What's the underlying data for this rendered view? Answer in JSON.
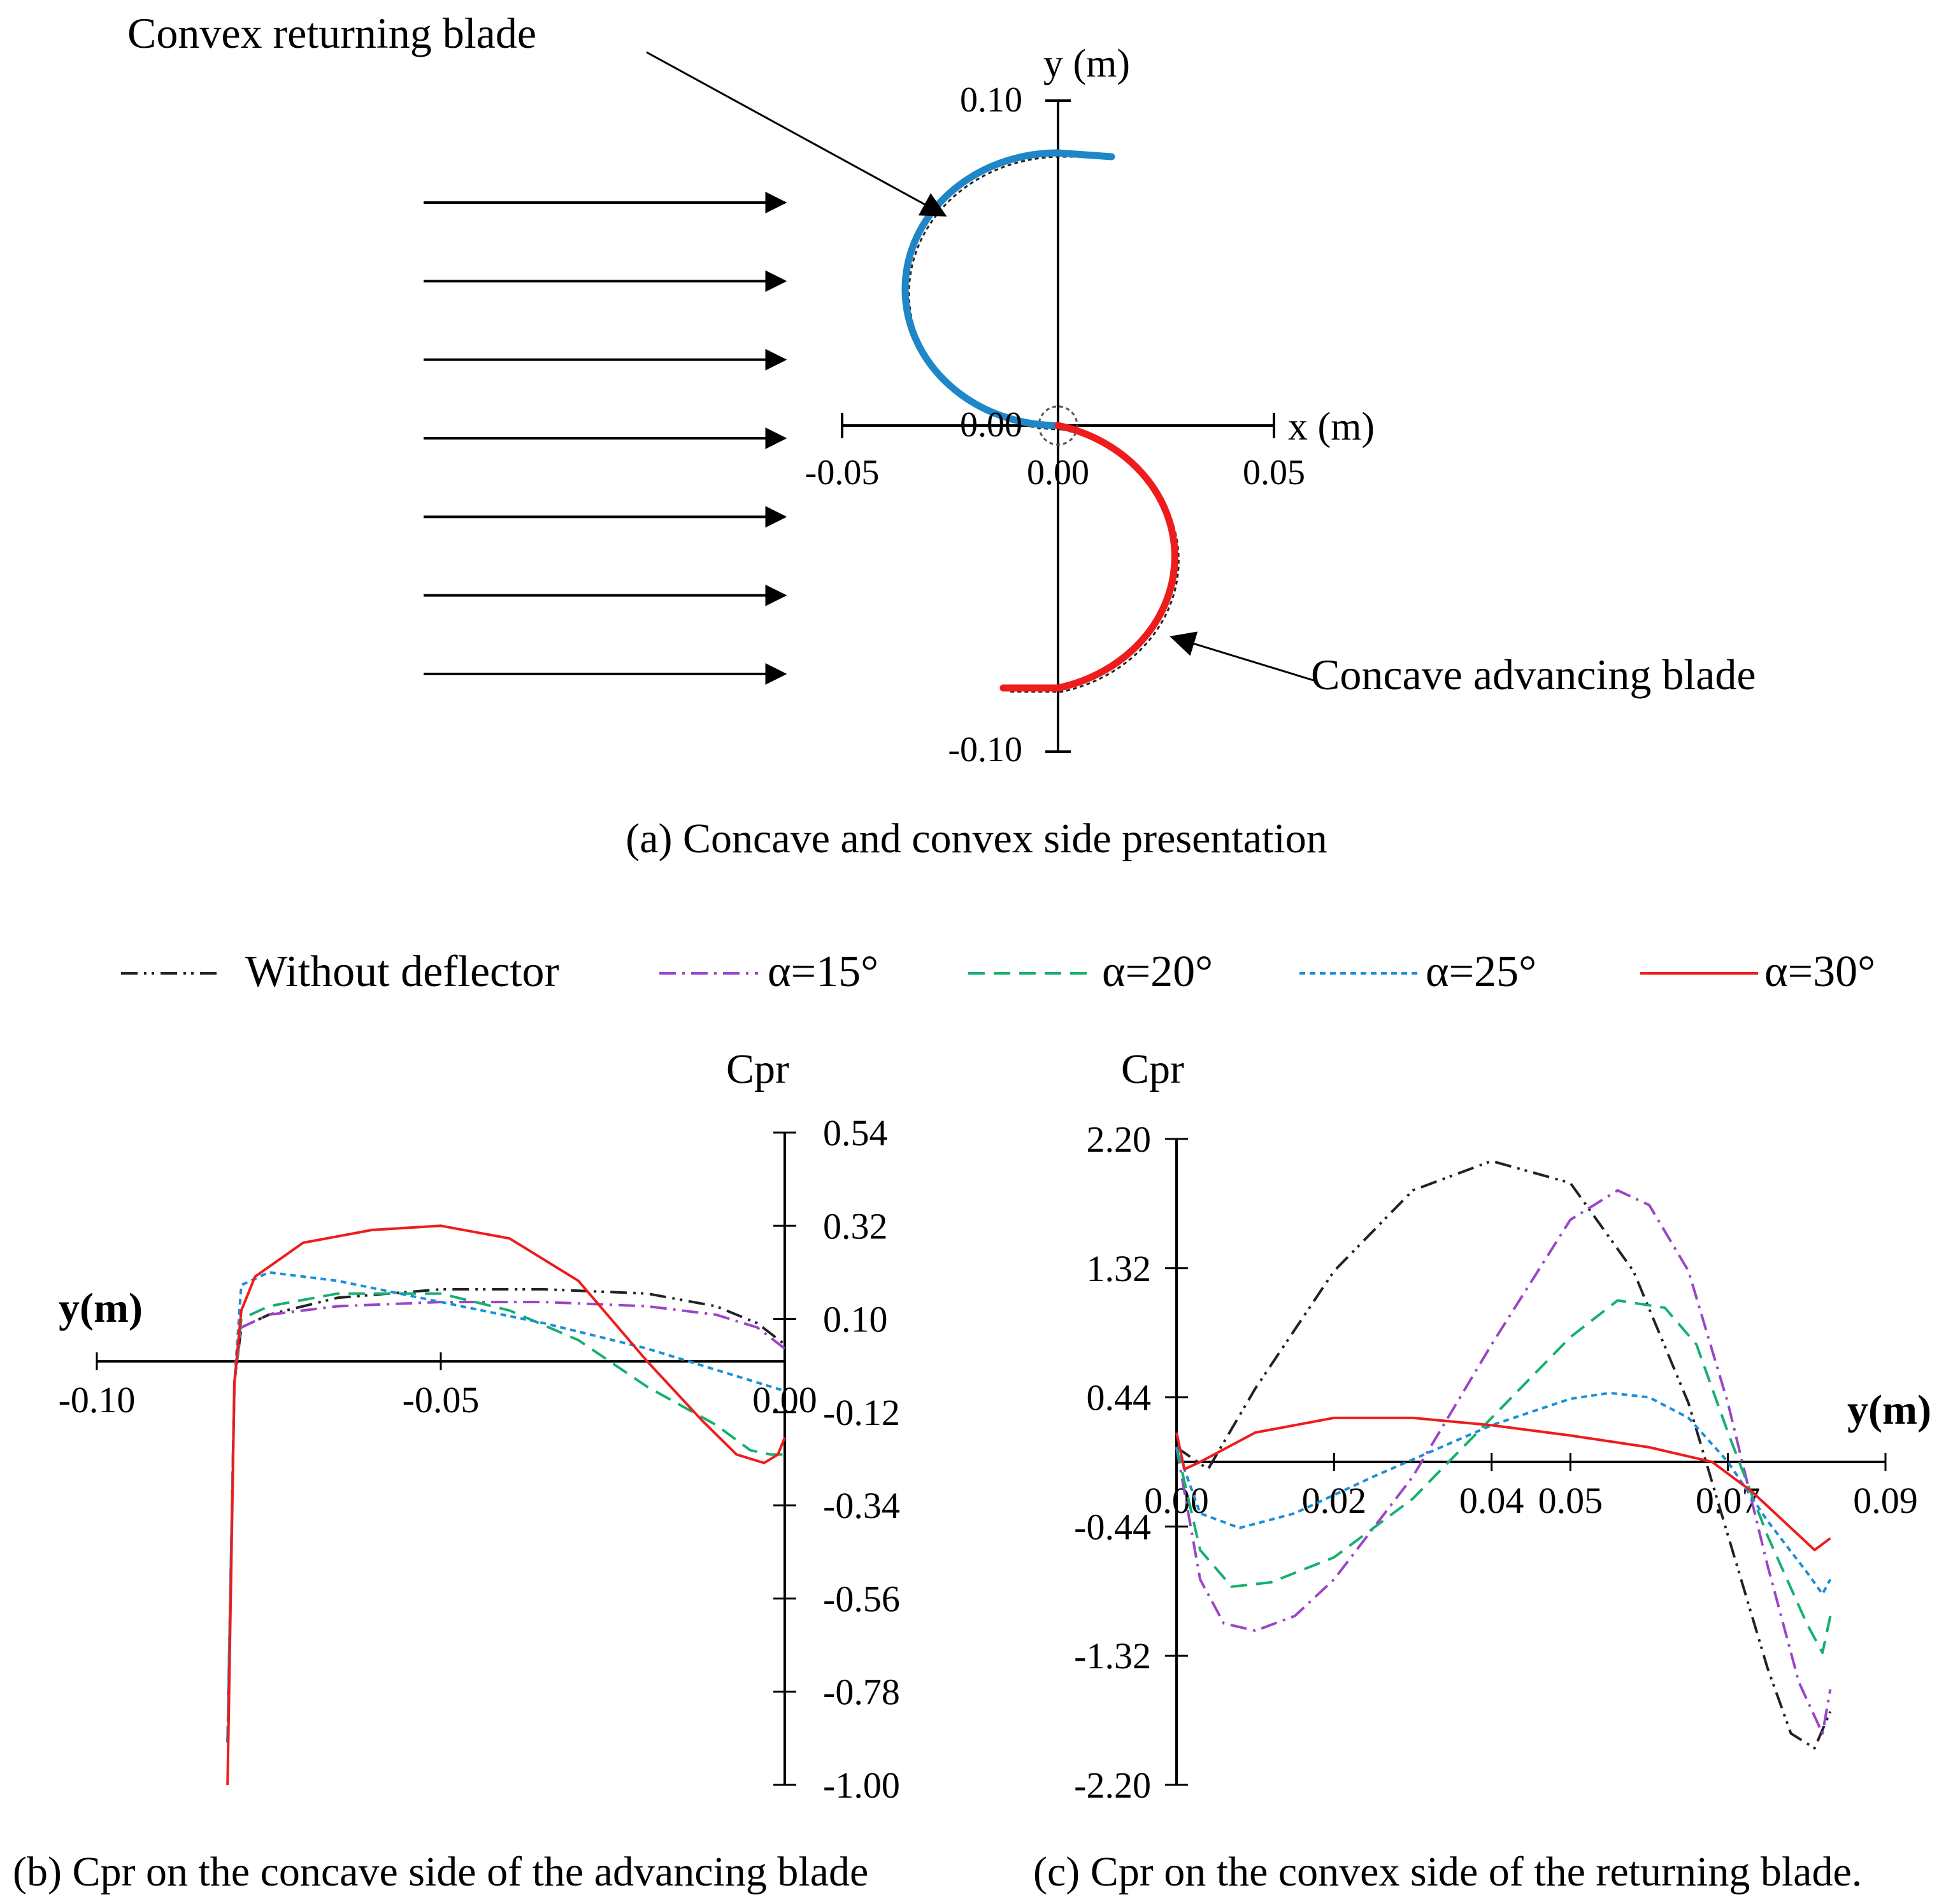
{
  "panel_a": {
    "caption": "(a) Concave and convex side presentation",
    "label_returning": "Convex returning blade",
    "label_advancing": "Concave advancing blade",
    "x_axis_label": "x (m)",
    "y_axis_label": "y (m)",
    "x_ticks": [
      "-0.05",
      "0.00",
      "0.05"
    ],
    "y_ticks": [
      "0.10",
      "0.00",
      "-0.10"
    ],
    "flow_arrows": 7,
    "colors": {
      "returning": "#1f86c8",
      "advancing": "#ee1c1c",
      "axes": "#000000"
    }
  },
  "legend": [
    {
      "label": "Without deflector",
      "color": "#222222",
      "dash": "dashdotdot"
    },
    {
      "label": "α=15°",
      "color": "#9b45c8",
      "dash": "dashdot"
    },
    {
      "label": "α=20°",
      "color": "#16b06e",
      "dash": "dash"
    },
    {
      "label": "α=25°",
      "color": "#1a8fd8",
      "dash": "dot"
    },
    {
      "label": "α=30°",
      "color": "#ee1c1c",
      "dash": "solid"
    }
  ],
  "chart_data": [
    {
      "type": "line",
      "caption": "(b) Cpr on the concave side of the advancing blade",
      "xlabel": "y(m)",
      "ylabel": "Cpr",
      "x_ticks": [
        "-0.10",
        "-0.05",
        "0.00"
      ],
      "y_ticks": [
        "0.54",
        "0.32",
        "0.10",
        "-0.12",
        "-0.34",
        "-0.56",
        "-0.78",
        "-1.00"
      ],
      "xlim": [
        -0.1,
        0.0
      ],
      "ylim": [
        -1.0,
        0.54
      ],
      "series": [
        {
          "name": "Without deflector",
          "x": [
            -0.081,
            -0.08,
            -0.079,
            -0.075,
            -0.065,
            -0.05,
            -0.035,
            -0.02,
            -0.01,
            -0.004,
            0.0
          ],
          "y": [
            -0.9,
            -0.05,
            0.08,
            0.11,
            0.15,
            0.17,
            0.17,
            0.16,
            0.13,
            0.09,
            0.04
          ]
        },
        {
          "name": "α=15°",
          "x": [
            -0.081,
            -0.08,
            -0.079,
            -0.075,
            -0.065,
            -0.05,
            -0.035,
            -0.02,
            -0.01,
            -0.004,
            0.0
          ],
          "y": [
            -0.9,
            -0.05,
            0.08,
            0.11,
            0.13,
            0.14,
            0.14,
            0.13,
            0.11,
            0.08,
            0.03
          ]
        },
        {
          "name": "α=20°",
          "x": [
            -0.081,
            -0.08,
            -0.079,
            -0.075,
            -0.065,
            -0.05,
            -0.04,
            -0.03,
            -0.02,
            -0.01,
            -0.005,
            -0.002,
            0.0
          ],
          "y": [
            -0.9,
            -0.05,
            0.1,
            0.13,
            0.16,
            0.16,
            0.12,
            0.05,
            -0.06,
            -0.15,
            -0.21,
            -0.22,
            -0.22
          ]
        },
        {
          "name": "α=25°",
          "x": [
            -0.081,
            -0.08,
            -0.079,
            -0.075,
            -0.065,
            -0.05,
            -0.035,
            -0.02,
            -0.01,
            0.0
          ],
          "y": [
            -0.9,
            -0.05,
            0.18,
            0.21,
            0.19,
            0.14,
            0.09,
            0.03,
            -0.02,
            -0.07
          ]
        },
        {
          "name": "α=30°",
          "x": [
            -0.081,
            -0.08,
            -0.079,
            -0.077,
            -0.07,
            -0.06,
            -0.05,
            -0.04,
            -0.03,
            -0.02,
            -0.012,
            -0.007,
            -0.003,
            -0.001,
            0.0
          ],
          "y": [
            -1.0,
            -0.05,
            0.12,
            0.2,
            0.28,
            0.31,
            0.32,
            0.29,
            0.19,
            0.0,
            -0.14,
            -0.22,
            -0.24,
            -0.22,
            -0.18
          ]
        }
      ]
    },
    {
      "type": "line",
      "caption": "(c) Cpr on the convex side of the returning blade.",
      "xlabel": "y(m)",
      "ylabel": "Cpr",
      "x_ticks": [
        "0.00",
        "0.02",
        "0.04",
        "0.05",
        "0.07",
        "0.09"
      ],
      "y_ticks": [
        "2.20",
        "1.32",
        "0.44",
        "-0.44",
        "-1.32",
        "-2.20"
      ],
      "xlim": [
        0.0,
        0.09
      ],
      "ylim": [
        -2.2,
        2.2
      ],
      "series": [
        {
          "name": "Without deflector",
          "x": [
            0.0,
            0.004,
            0.01,
            0.02,
            0.03,
            0.04,
            0.05,
            0.058,
            0.065,
            0.07,
            0.075,
            0.078,
            0.081,
            0.083
          ],
          "y": [
            0.1,
            -0.05,
            0.5,
            1.3,
            1.85,
            2.05,
            1.9,
            1.3,
            0.4,
            -0.5,
            -1.4,
            -1.85,
            -1.95,
            -1.7
          ]
        },
        {
          "name": "α=15°",
          "x": [
            0.0,
            0.003,
            0.006,
            0.01,
            0.015,
            0.02,
            0.03,
            0.04,
            0.05,
            0.056,
            0.06,
            0.065,
            0.07,
            0.075,
            0.079,
            0.082,
            0.083
          ],
          "y": [
            0.1,
            -0.8,
            -1.1,
            -1.15,
            -1.05,
            -0.8,
            -0.1,
            0.8,
            1.65,
            1.85,
            1.75,
            1.3,
            0.4,
            -0.7,
            -1.5,
            -1.85,
            -1.55
          ]
        },
        {
          "name": "α=20°",
          "x": [
            0.0,
            0.003,
            0.007,
            0.012,
            0.02,
            0.03,
            0.04,
            0.05,
            0.056,
            0.062,
            0.066,
            0.07,
            0.075,
            0.08,
            0.082,
            0.083
          ],
          "y": [
            0.1,
            -0.6,
            -0.85,
            -0.82,
            -0.65,
            -0.25,
            0.3,
            0.85,
            1.1,
            1.05,
            0.8,
            0.2,
            -0.5,
            -1.1,
            -1.3,
            -1.05
          ]
        },
        {
          "name": "α=25°",
          "x": [
            0.0,
            0.003,
            0.008,
            0.015,
            0.025,
            0.04,
            0.05,
            0.055,
            0.06,
            0.065,
            0.07,
            0.075,
            0.08,
            0.082,
            0.083
          ],
          "y": [
            0.1,
            -0.35,
            -0.45,
            -0.35,
            -0.1,
            0.25,
            0.43,
            0.47,
            0.44,
            0.3,
            0.0,
            -0.4,
            -0.75,
            -0.9,
            -0.8
          ]
        },
        {
          "name": "α=30°",
          "x": [
            0.0,
            0.001,
            0.003,
            0.01,
            0.02,
            0.03,
            0.04,
            0.05,
            0.06,
            0.068,
            0.073,
            0.078,
            0.081,
            0.083
          ],
          "y": [
            0.2,
            -0.05,
            0.0,
            0.2,
            0.3,
            0.3,
            0.25,
            0.18,
            0.1,
            0.0,
            -0.2,
            -0.45,
            -0.6,
            -0.52
          ]
        }
      ]
    }
  ]
}
